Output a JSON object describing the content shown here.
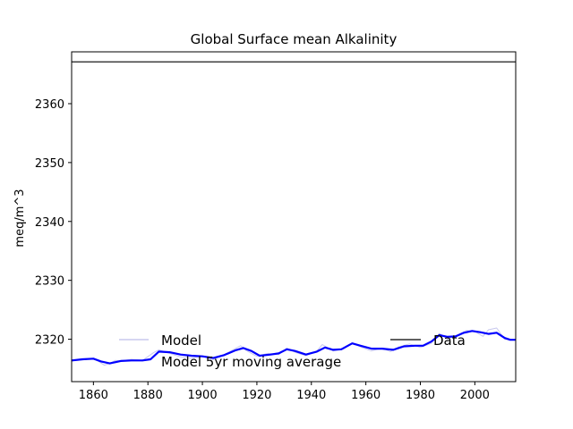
{
  "chart_data": {
    "type": "line",
    "title": "Global Surface mean Alkalinity",
    "xlabel": "",
    "ylabel": "meq/m^3",
    "xlim": [
      1852,
      2015
    ],
    "ylim": [
      2312.8,
      2368.8
    ],
    "xticks": [
      1860,
      1880,
      1900,
      1920,
      1940,
      1960,
      1980,
      2000
    ],
    "yticks": [
      2320,
      2330,
      2340,
      2350,
      2360
    ],
    "grid": false,
    "legend": [
      {
        "label": "Model",
        "placement": "lower-left"
      },
      {
        "label": "Model 5yr moving average",
        "placement": "lower-left"
      },
      {
        "label": "Data",
        "placement": "lower-right"
      }
    ],
    "series": [
      {
        "name": "Model",
        "color": "#c8c8ee",
        "x": [
          1852,
          1856,
          1860,
          1862,
          1864,
          1866,
          1868,
          1870,
          1874,
          1878,
          1882,
          1884,
          1888,
          1892,
          1896,
          1900,
          1904,
          1908,
          1912,
          1914,
          1916,
          1920,
          1924,
          1928,
          1931,
          1934,
          1938,
          1942,
          1944,
          1948,
          1952,
          1955,
          1958,
          1962,
          1966,
          1969,
          1972,
          1976,
          1980,
          1984,
          1987,
          1990,
          1994,
          1997,
          2000,
          2003,
          2005,
          2008,
          2011,
          2015
        ],
        "y": [
          2316.3,
          2316.5,
          2316.7,
          2316.2,
          2315.6,
          2315.9,
          2316.4,
          2316.3,
          2316.6,
          2316.4,
          2317.7,
          2318.2,
          2317.6,
          2317.0,
          2316.8,
          2317.1,
          2316.5,
          2317.4,
          2318.4,
          2318.9,
          2318.1,
          2317.1,
          2317.6,
          2317.4,
          2318.5,
          2317.8,
          2317.2,
          2318.0,
          2319.1,
          2318.0,
          2318.4,
          2319.4,
          2318.7,
          2318.0,
          2318.5,
          2317.9,
          2318.7,
          2319.2,
          2318.6,
          2319.3,
          2321.0,
          2320.0,
          2320.8,
          2321.5,
          2321.3,
          2320.5,
          2321.6,
          2321.9,
          2320.0,
          2319.9
        ]
      },
      {
        "name": "Model 5yr moving average",
        "color": "#0000ff",
        "x": [
          1852,
          1856,
          1860,
          1863,
          1866,
          1870,
          1874,
          1878,
          1881,
          1884,
          1888,
          1892,
          1896,
          1900,
          1904,
          1908,
          1912,
          1915,
          1918,
          1921,
          1925,
          1928,
          1931,
          1934,
          1938,
          1942,
          1945,
          1948,
          1951,
          1955,
          1958,
          1962,
          1966,
          1970,
          1974,
          1978,
          1981,
          1984,
          1987,
          1990,
          1993,
          1996,
          1999,
          2002,
          2005,
          2008,
          2011,
          2013,
          2015
        ],
        "y": [
          2316.4,
          2316.6,
          2316.7,
          2316.2,
          2315.9,
          2316.3,
          2316.4,
          2316.4,
          2316.6,
          2317.9,
          2317.8,
          2317.4,
          2317.2,
          2317.1,
          2316.8,
          2317.3,
          2318.1,
          2318.5,
          2318.0,
          2317.2,
          2317.4,
          2317.6,
          2318.3,
          2318.0,
          2317.4,
          2317.9,
          2318.6,
          2318.2,
          2318.3,
          2319.3,
          2318.9,
          2318.4,
          2318.4,
          2318.2,
          2318.8,
          2318.9,
          2318.9,
          2319.6,
          2320.7,
          2320.4,
          2320.5,
          2321.1,
          2321.4,
          2321.2,
          2320.9,
          2321.1,
          2320.2,
          2319.9,
          2319.9
        ]
      },
      {
        "name": "Data",
        "color": "#000000",
        "x": [
          1852,
          2015
        ],
        "y": [
          2367.1,
          2367.1
        ]
      }
    ]
  }
}
